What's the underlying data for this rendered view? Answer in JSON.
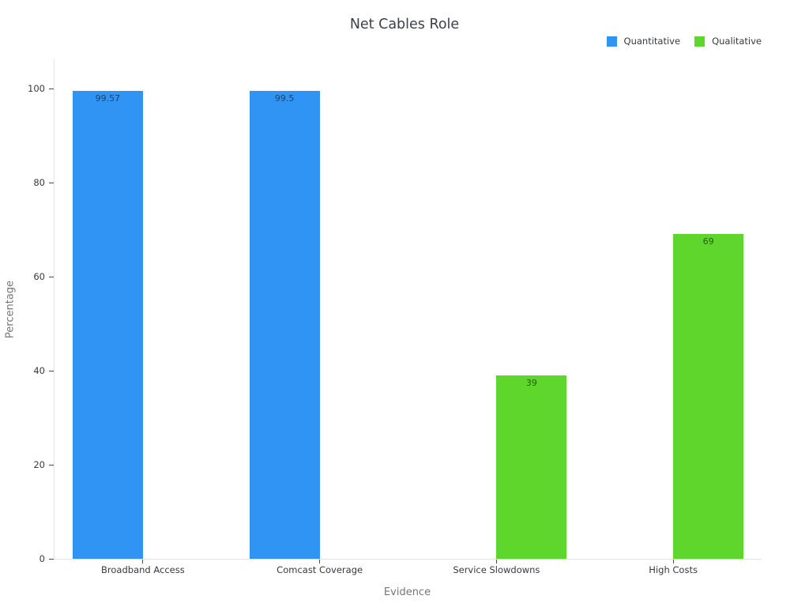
{
  "chart_data": {
    "type": "bar",
    "title": "Net Cables Role",
    "xlabel": "Evidence",
    "ylabel": "Percentage",
    "categories": [
      "Broadband Access",
      "Comcast Coverage",
      "Service Slowdowns",
      "High Costs"
    ],
    "series": [
      {
        "name": "Quantitative",
        "color": "#3094f5",
        "label_color": "#1d4468",
        "values": [
          99.57,
          99.5,
          null,
          null
        ]
      },
      {
        "name": "Qualitative",
        "color": "#5ed62c",
        "label_color": "#2a5c12",
        "values": [
          null,
          null,
          39,
          69
        ]
      }
    ],
    "bar_labels": [
      "99.57",
      "99.5",
      "39",
      "69"
    ],
    "ylim": [
      0,
      100
    ],
    "yticks": [
      0,
      20,
      40,
      60,
      80,
      100
    ],
    "grid": false,
    "legend_position": "top-right",
    "background_color": "#ffffff",
    "axis_line_color": "#e4e4e4"
  }
}
